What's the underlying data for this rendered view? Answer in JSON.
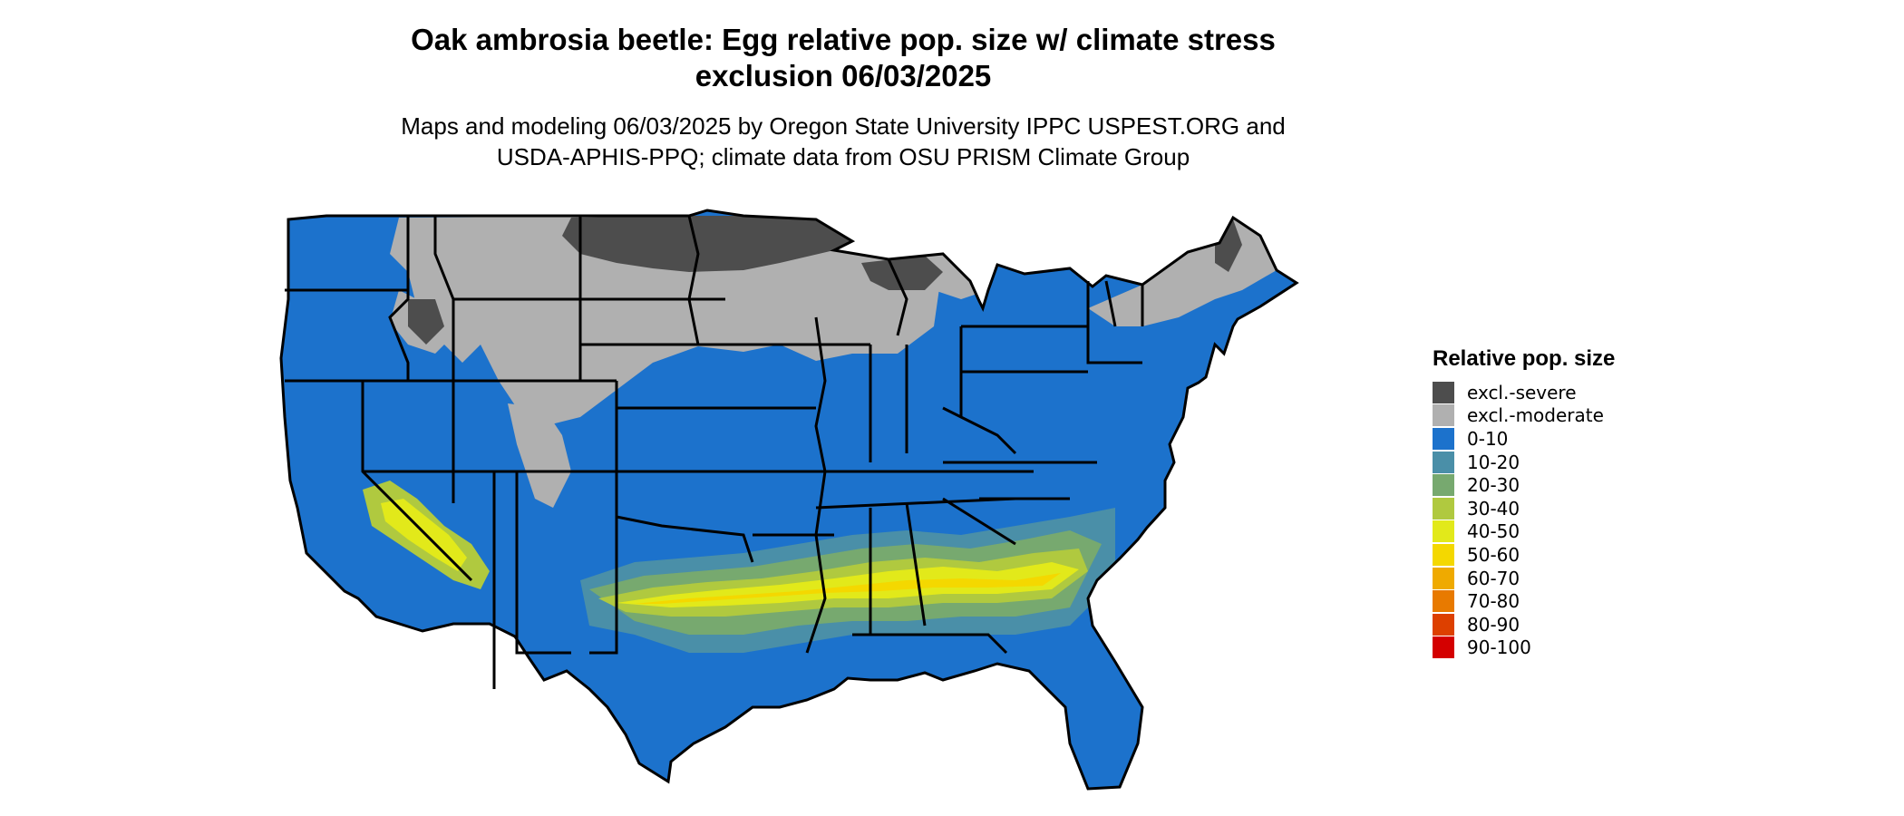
{
  "title_line1": "Oak ambrosia beetle: Egg relative pop. size w/ climate stress",
  "title_line2": "exclusion 06/03/2025",
  "subtitle_line1": "Maps and modeling 06/03/2025 by Oregon State University IPPC USPEST.ORG and",
  "subtitle_line2": "USDA-APHIS-PPQ; climate data from OSU PRISM Climate Group",
  "legend": {
    "title": "Relative pop. size",
    "items": [
      {
        "label": "excl.-severe",
        "color": "#4d4d4d"
      },
      {
        "label": "excl.-moderate",
        "color": "#b0b0b0"
      },
      {
        "label": "0-10",
        "color": "#1c72cc"
      },
      {
        "label": "10-20",
        "color": "#4a8fa8"
      },
      {
        "label": "20-30",
        "color": "#77a96f"
      },
      {
        "label": "30-40",
        "color": "#b0c93f"
      },
      {
        "label": "40-50",
        "color": "#e2e91a"
      },
      {
        "label": "50-60",
        "color": "#f4d800"
      },
      {
        "label": "60-70",
        "color": "#efaa00"
      },
      {
        "label": "70-80",
        "color": "#e87a00"
      },
      {
        "label": "80-90",
        "color": "#dd4000"
      },
      {
        "label": "90-100",
        "color": "#d40000"
      }
    ]
  },
  "map_colors": {
    "base": "#1c72cc",
    "excl_severe": "#4d4d4d",
    "excl_moderate": "#b0b0b0",
    "band_10_20": "#4a8fa8",
    "band_20_30": "#77a96f",
    "band_30_40": "#b0c93f",
    "band_40_50": "#e2e91a",
    "band_50_60": "#f4d800",
    "border": "#000000"
  }
}
